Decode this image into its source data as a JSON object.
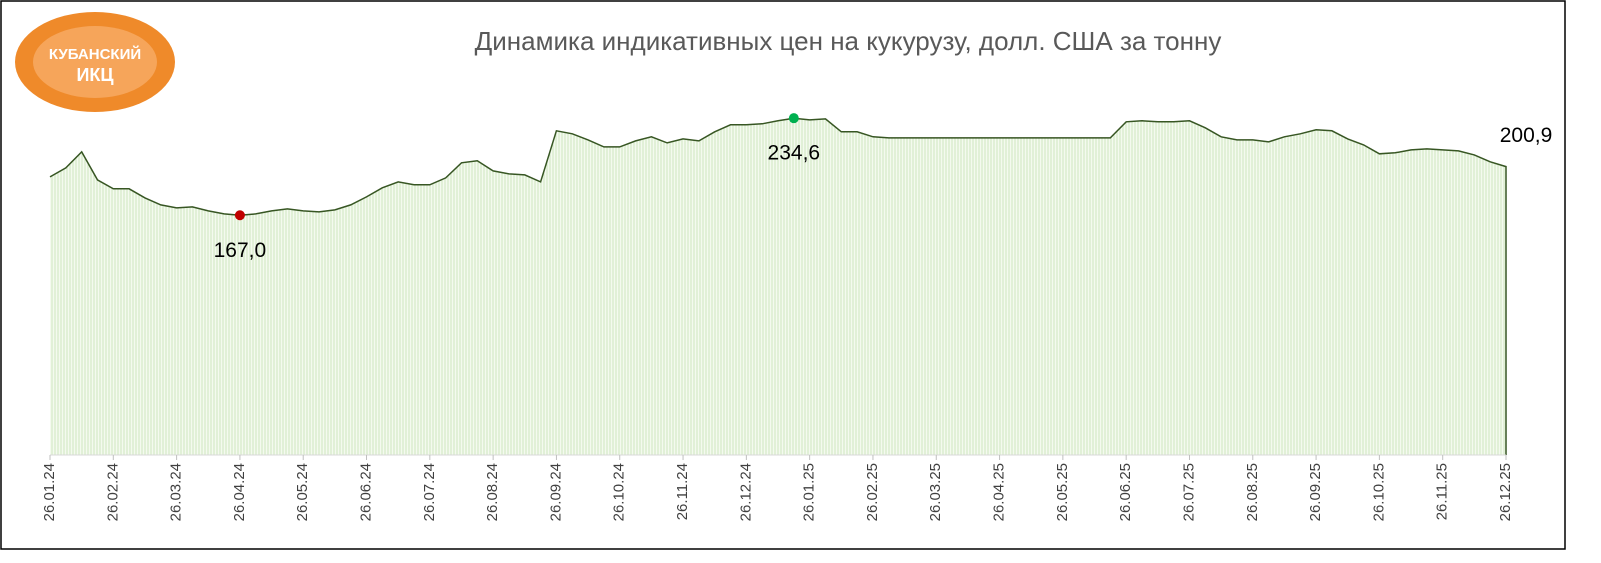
{
  "logo": {
    "line1": "КУБАНСКИЙ",
    "line2": "ИКЦ"
  },
  "chart_data": {
    "type": "area",
    "title": "Динамика индикативных цен на кукурузу, долл. США за тонну",
    "categories": [
      "26.01.24",
      null,
      null,
      null,
      "26.02.24",
      null,
      null,
      null,
      "26.03.24",
      null,
      null,
      null,
      "26.04.24",
      null,
      null,
      null,
      "26.05.24",
      null,
      null,
      null,
      "26.06.24",
      null,
      null,
      null,
      "26.07.24",
      null,
      null,
      null,
      "26.08.24",
      null,
      null,
      null,
      "26.09.24",
      null,
      null,
      null,
      "26.10.24",
      null,
      null,
      null,
      "26.11.24",
      null,
      null,
      null,
      "26.12.24",
      null,
      null,
      null,
      "26.01.25",
      null,
      null,
      null,
      "26.02.25",
      null,
      null,
      null,
      "26.03.25",
      null,
      null,
      null,
      "26.04.25",
      null,
      null,
      null,
      "26.05.25",
      null,
      null,
      null,
      "26.06.25",
      null,
      null,
      null,
      "26.07.25",
      null,
      null,
      null,
      "26.08.25",
      null,
      null,
      null,
      "26.09.25",
      null,
      null,
      null,
      "26.10.25",
      null,
      null,
      null,
      "26.11.25",
      null,
      null,
      null,
      "26.12.25"
    ],
    "values": [
      193.7,
      200,
      211.1,
      191.6,
      185.4,
      185.4,
      179.1,
      174.2,
      172.1,
      172.8,
      170,
      167.9,
      167.0,
      167.9,
      170,
      171.4,
      170,
      169.3,
      170.7,
      174.2,
      179.8,
      186.1,
      190.2,
      188.2,
      188.2,
      193,
      203.5,
      204.9,
      197.9,
      195.8,
      195.1,
      190.2,
      225.8,
      223.7,
      219.5,
      214.6,
      214.6,
      218.8,
      221.6,
      217.4,
      220.2,
      218.8,
      225.1,
      230,
      230,
      230.7,
      232.8,
      234.6,
      233.4,
      234.1,
      225.1,
      225.1,
      221.6,
      220.9,
      220.9,
      220.9,
      220.9,
      220.9,
      220.9,
      220.9,
      220.9,
      220.9,
      220.9,
      220.9,
      220.9,
      220.9,
      220.9,
      220.9,
      232.1,
      232.8,
      232.1,
      232.1,
      232.8,
      227.9,
      221.6,
      219.5,
      219.5,
      218.1,
      221.6,
      223.7,
      226.5,
      225.8,
      220.2,
      216,
      209.8,
      210.5,
      212.5,
      213.2,
      212.5,
      211.8,
      209,
      204.2,
      200.9
    ],
    "value_labels": [
      null,
      null,
      null,
      null,
      null,
      null,
      null,
      null,
      null,
      null,
      null,
      null,
      "167,0",
      null,
      null,
      null,
      null,
      null,
      null,
      null,
      null,
      null,
      null,
      null,
      null,
      null,
      null,
      null,
      null,
      null,
      null,
      null,
      null,
      null,
      null,
      null,
      null,
      null,
      null,
      null,
      null,
      null,
      null,
      null,
      null,
      null,
      null,
      "234,6",
      null,
      null,
      null,
      null,
      null,
      null,
      null,
      null,
      null,
      null,
      null,
      null,
      null,
      null,
      null,
      null,
      null,
      null,
      null,
      null,
      null,
      null,
      null,
      null,
      null,
      null,
      null,
      null,
      null,
      null,
      null,
      null,
      null,
      null,
      null,
      null,
      null,
      null,
      null,
      null,
      null,
      null,
      null,
      null,
      "200,9"
    ],
    "markers": [
      {
        "index": 12,
        "color": "#c00000"
      },
      {
        "index": 47,
        "color": "#00b050"
      }
    ],
    "line_color": "#375623",
    "fill_color": "#e2f0d9",
    "ylim": [
      0,
      280
    ]
  }
}
